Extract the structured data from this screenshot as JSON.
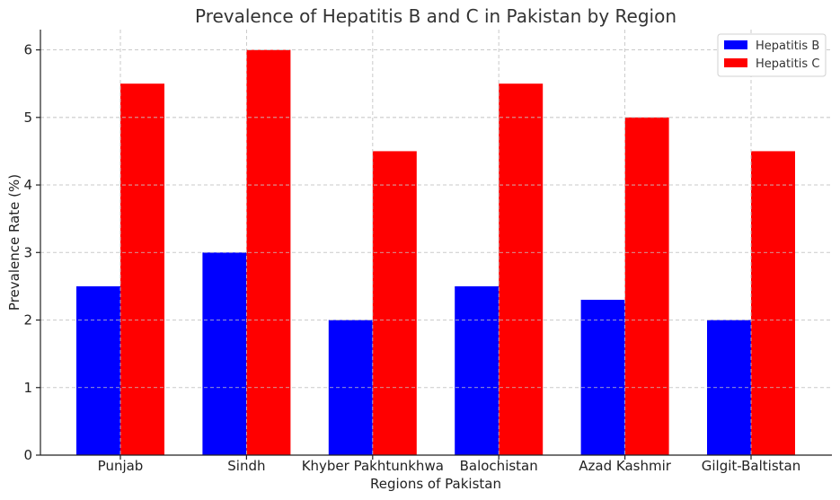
{
  "chart_data": {
    "type": "bar",
    "title": "Prevalence of Hepatitis B and C in Pakistan by Region",
    "xlabel": "Regions of Pakistan",
    "ylabel": "Prevalence Rate (%)",
    "categories": [
      "Punjab",
      "Sindh",
      "Khyber Pakhtunkhwa",
      "Balochistan",
      "Azad Kashmir",
      "Gilgit-Baltistan"
    ],
    "series": [
      {
        "name": "Hepatitis B",
        "color": "#0000ff",
        "values": [
          2.5,
          3.0,
          2.0,
          2.5,
          2.3,
          2.0
        ]
      },
      {
        "name": "Hepatitis C",
        "color": "#ff0000",
        "values": [
          5.5,
          6.0,
          4.5,
          5.5,
          5.0,
          4.5
        ]
      }
    ],
    "ylim": [
      0,
      6.3
    ],
    "yticks": [
      0,
      1,
      2,
      3,
      4,
      5,
      6
    ],
    "grid": true,
    "legend_position": "top-right"
  }
}
